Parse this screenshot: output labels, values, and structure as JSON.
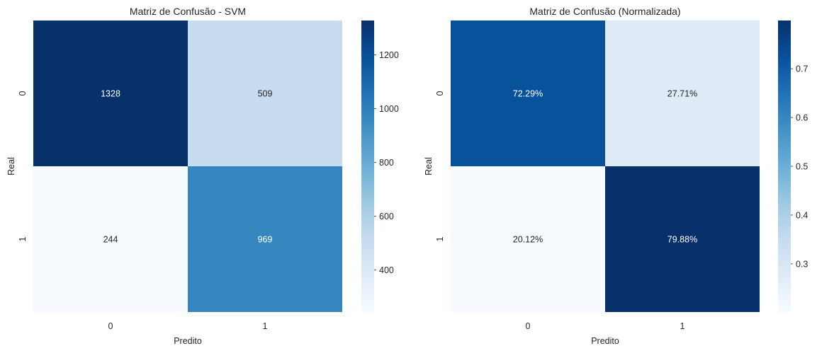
{
  "chart_data": [
    {
      "type": "heatmap",
      "title": "Matriz de Confusão - SVM",
      "xlabel": "Predito",
      "ylabel": "Real",
      "x_categories": [
        "0",
        "1"
      ],
      "y_categories": [
        "0",
        "1"
      ],
      "values": [
        [
          1328,
          509
        ],
        [
          244,
          969
        ]
      ],
      "cell_labels": [
        [
          "1328",
          "509"
        ],
        [
          "244",
          "969"
        ]
      ],
      "colormap": "Blues",
      "colorbar": {
        "range": [
          244,
          1328
        ],
        "ticks": [
          400,
          600,
          800,
          1000,
          1200
        ],
        "tick_labels": [
          "400",
          "600",
          "800",
          "1000",
          "1200"
        ]
      }
    },
    {
      "type": "heatmap",
      "title": "Matriz de Confusão (Normalizada)",
      "xlabel": "Predito",
      "ylabel": "Real",
      "x_categories": [
        "0",
        "1"
      ],
      "y_categories": [
        "0",
        "1"
      ],
      "values": [
        [
          0.7229,
          0.2771
        ],
        [
          0.2012,
          0.7988
        ]
      ],
      "cell_labels": [
        [
          "72.29%",
          "27.71%"
        ],
        [
          "20.12%",
          "79.88%"
        ]
      ],
      "colormap": "Blues",
      "colorbar": {
        "range": [
          0.2012,
          0.7988
        ],
        "ticks": [
          0.3,
          0.4,
          0.5,
          0.6,
          0.7
        ],
        "tick_labels": [
          "0.3",
          "0.4",
          "0.5",
          "0.6",
          "0.7"
        ]
      }
    }
  ]
}
